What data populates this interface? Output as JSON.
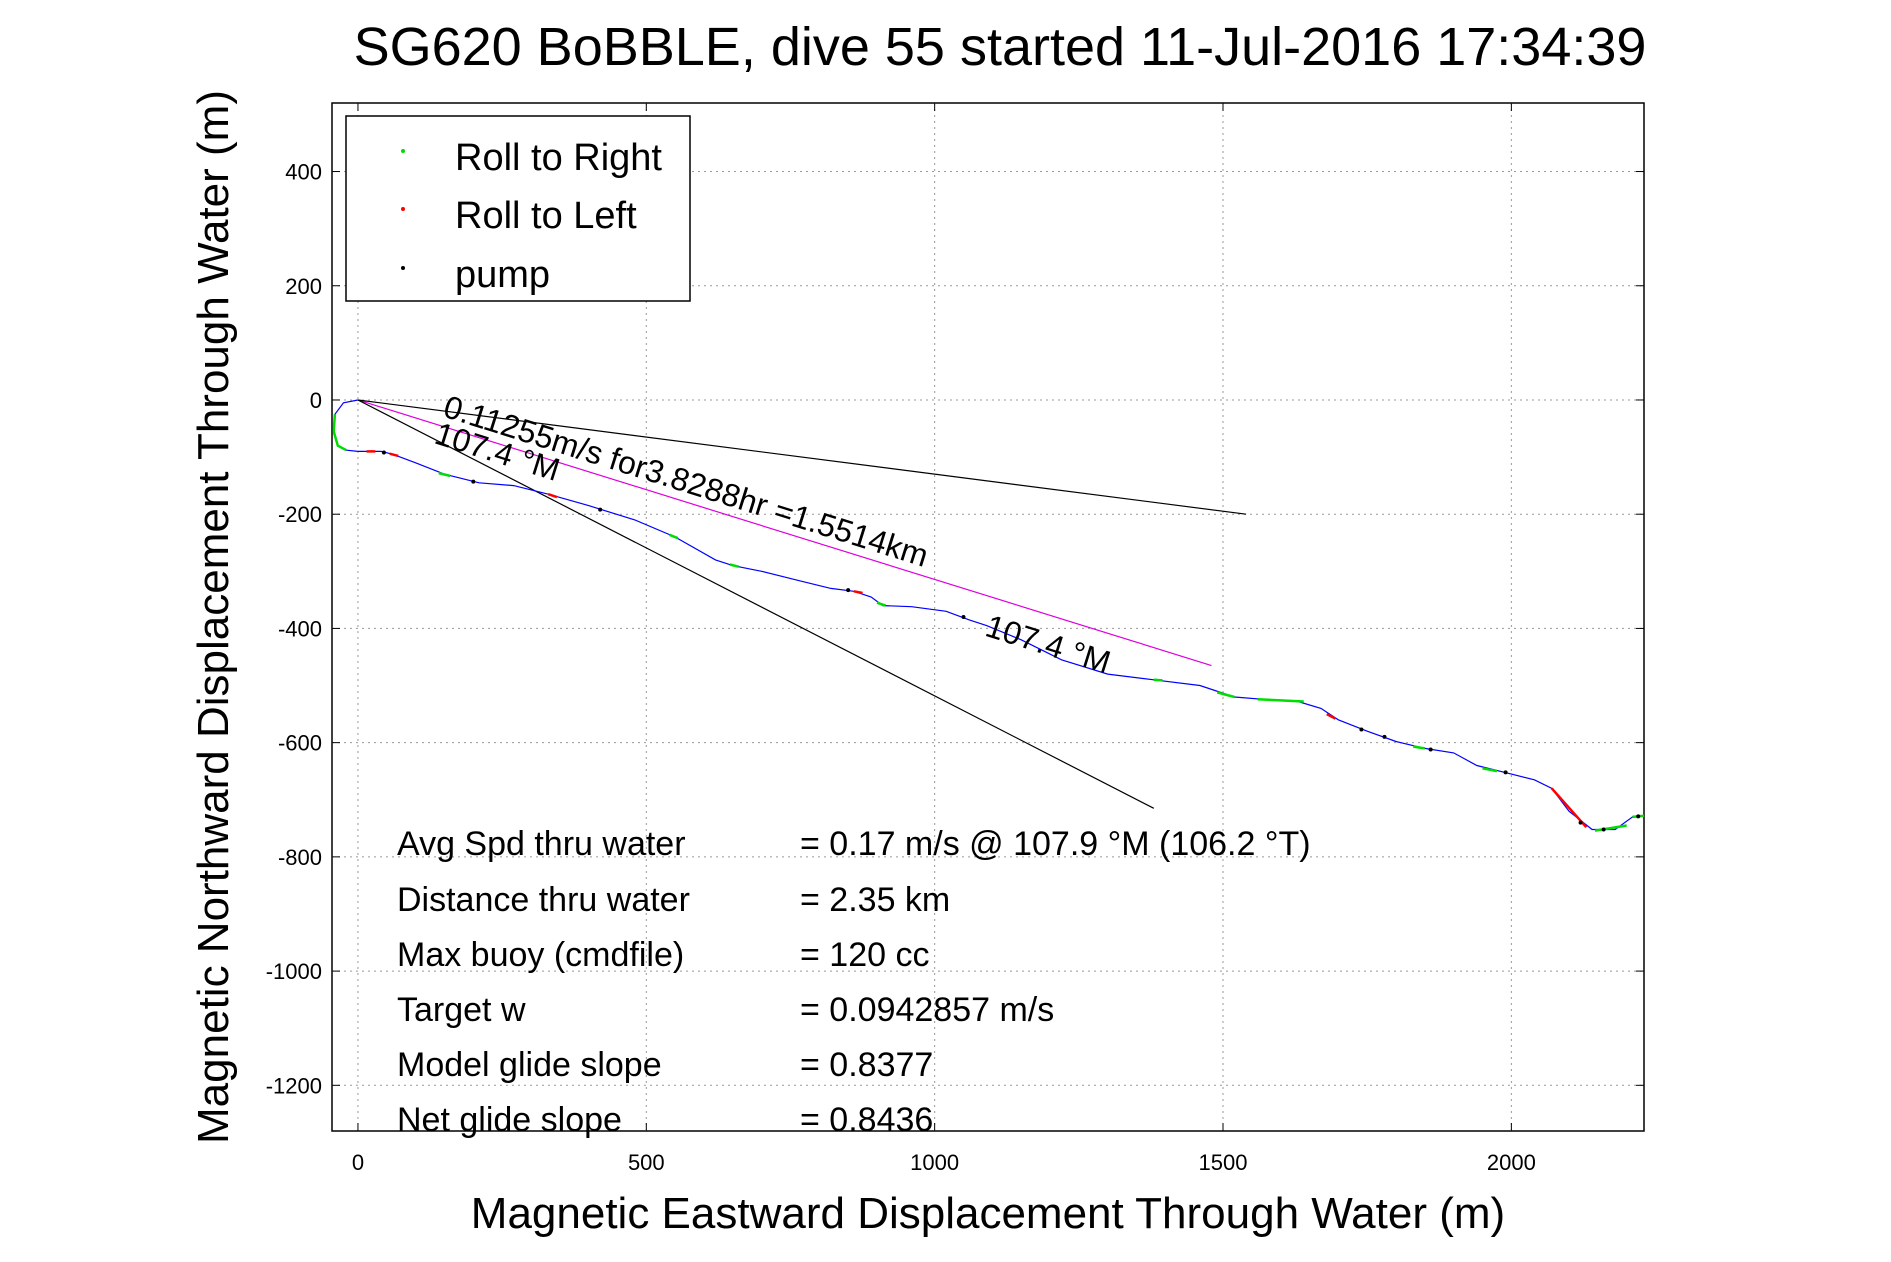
{
  "chart_data": {
    "type": "line",
    "title": "SG620 BoBBLE, dive 55 started 11-Jul-2016 17:34:39",
    "xlabel": "Magnetic Eastward Displacement Through Water (m)",
    "ylabel": "Magnetic Northward Displacement Through Water (m)",
    "xlim": [
      -45,
      2230
    ],
    "ylim": [
      -1280,
      520
    ],
    "xticks": [
      0,
      500,
      1000,
      1500,
      2000
    ],
    "xtick_labels": [
      "0",
      "500",
      "1000",
      "1500",
      "2000"
    ],
    "yticks": [
      400,
      200,
      0,
      -200,
      -400,
      -600,
      -800,
      -1000,
      -1200
    ],
    "ytick_labels": [
      "400",
      "200",
      "0",
      "-200",
      "-400",
      "-600",
      "-800",
      "-1000",
      "-1200"
    ],
    "grid": true,
    "legend_position": "top-left",
    "legend": [
      {
        "name": "Roll to Right",
        "color": "#00dd00"
      },
      {
        "name": "Roll to Left",
        "color": "#ff0000"
      },
      {
        "name": "pump",
        "color": "#000000"
      }
    ],
    "track": {
      "color": "#0000ff",
      "points": [
        [
          0,
          0
        ],
        [
          -25,
          -5
        ],
        [
          -40,
          -25
        ],
        [
          -42,
          -55
        ],
        [
          -35,
          -80
        ],
        [
          -20,
          -88
        ],
        [
          0,
          -90
        ],
        [
          40,
          -90
        ],
        [
          60,
          -95
        ],
        [
          100,
          -110
        ],
        [
          150,
          -130
        ],
        [
          210,
          -145
        ],
        [
          270,
          -150
        ],
        [
          330,
          -165
        ],
        [
          400,
          -185
        ],
        [
          480,
          -210
        ],
        [
          550,
          -240
        ],
        [
          620,
          -280
        ],
        [
          650,
          -290
        ],
        [
          700,
          -300
        ],
        [
          760,
          -315
        ],
        [
          820,
          -330
        ],
        [
          860,
          -335
        ],
        [
          890,
          -345
        ],
        [
          910,
          -360
        ],
        [
          960,
          -362
        ],
        [
          1020,
          -370
        ],
        [
          1060,
          -385
        ],
        [
          1090,
          -395
        ],
        [
          1150,
          -420
        ],
        [
          1220,
          -455
        ],
        [
          1300,
          -480
        ],
        [
          1380,
          -490
        ],
        [
          1460,
          -500
        ],
        [
          1520,
          -520
        ],
        [
          1580,
          -525
        ],
        [
          1630,
          -528
        ],
        [
          1670,
          -540
        ],
        [
          1700,
          -560
        ],
        [
          1750,
          -580
        ],
        [
          1800,
          -598
        ],
        [
          1850,
          -610
        ],
        [
          1900,
          -618
        ],
        [
          1940,
          -640
        ],
        [
          2000,
          -655
        ],
        [
          2040,
          -665
        ],
        [
          2070,
          -680
        ],
        [
          2100,
          -720
        ],
        [
          2140,
          -752
        ],
        [
          2180,
          -752
        ],
        [
          2210,
          -730
        ],
        [
          2230,
          -728
        ]
      ]
    },
    "roll_right_segments": [
      [
        [
          -40,
          -25
        ],
        [
          -42,
          -55
        ],
        [
          -35,
          -80
        ],
        [
          -20,
          -88
        ]
      ],
      [
        [
          140,
          -128
        ],
        [
          160,
          -133
        ]
      ],
      [
        [
          540,
          -236
        ],
        [
          555,
          -242
        ]
      ],
      [
        [
          645,
          -288
        ],
        [
          660,
          -292
        ]
      ],
      [
        [
          900,
          -355
        ],
        [
          915,
          -360
        ]
      ],
      [
        [
          1380,
          -490
        ],
        [
          1395,
          -491
        ]
      ],
      [
        [
          1490,
          -512
        ],
        [
          1520,
          -520
        ]
      ],
      [
        [
          1560,
          -524
        ],
        [
          1640,
          -528
        ]
      ],
      [
        [
          1830,
          -607
        ],
        [
          1850,
          -610
        ]
      ],
      [
        [
          1950,
          -645
        ],
        [
          1975,
          -650
        ]
      ],
      [
        [
          2145,
          -754
        ],
        [
          2200,
          -745
        ]
      ],
      [
        [
          2210,
          -730
        ],
        [
          2230,
          -728
        ]
      ]
    ],
    "roll_left_segments": [
      [
        [
          15,
          -90
        ],
        [
          30,
          -90
        ]
      ],
      [
        [
          55,
          -94
        ],
        [
          70,
          -98
        ]
      ],
      [
        [
          330,
          -165
        ],
        [
          345,
          -170
        ]
      ],
      [
        [
          860,
          -335
        ],
        [
          875,
          -338
        ]
      ],
      [
        [
          1680,
          -550
        ],
        [
          1695,
          -558
        ]
      ],
      [
        [
          2070,
          -680
        ],
        [
          2130,
          -748
        ]
      ]
    ],
    "pump_points": [
      [
        45,
        -92
      ],
      [
        200,
        -143
      ],
      [
        420,
        -192
      ],
      [
        850,
        -333
      ],
      [
        1050,
        -380
      ],
      [
        1740,
        -577
      ],
      [
        1780,
        -590
      ],
      [
        1860,
        -612
      ],
      [
        1990,
        -652
      ],
      [
        2120,
        -740
      ],
      [
        2160,
        -752
      ],
      [
        2220,
        -729
      ]
    ],
    "reference_lines": [
      {
        "name": "avg-speed-line",
        "color": "#dd00dd",
        "from": [
          0,
          0
        ],
        "to": [
          1480,
          -465
        ]
      },
      {
        "name": "heading-line-upper",
        "color": "#000000",
        "from": [
          0,
          0
        ],
        "to": [
          1540,
          -200
        ]
      },
      {
        "name": "heading-line-lower",
        "color": "#000000",
        "from": [
          0,
          0
        ],
        "to": [
          1380,
          -715
        ]
      }
    ],
    "annotations": [
      {
        "text": "0.11255m/s for3.8288hr =1.5514km",
        "at": [
          145,
          -28
        ],
        "angle_deg": 17.4
      },
      {
        "text": "107.4 °M",
        "at": [
          130,
          -75
        ],
        "angle_deg": 17.4
      },
      {
        "text": "107.4 °M",
        "at": [
          1085,
          -412
        ],
        "angle_deg": 17.4
      }
    ],
    "stats": [
      {
        "label": "Avg Spd thru water",
        "value": "=  0.17 m/s @ 107.9 °M (106.2 °T)"
      },
      {
        "label": "Distance thru water",
        "value": "=  2.35 km"
      },
      {
        "label": "Max buoy (cmdfile)",
        "value": "= 120 cc"
      },
      {
        "label": "Target w",
        "value": "= 0.0942857 m/s"
      },
      {
        "label": "Model glide slope",
        "value": "= 0.8377"
      },
      {
        "label": "Net glide slope",
        "value": "= 0.8436"
      }
    ]
  }
}
